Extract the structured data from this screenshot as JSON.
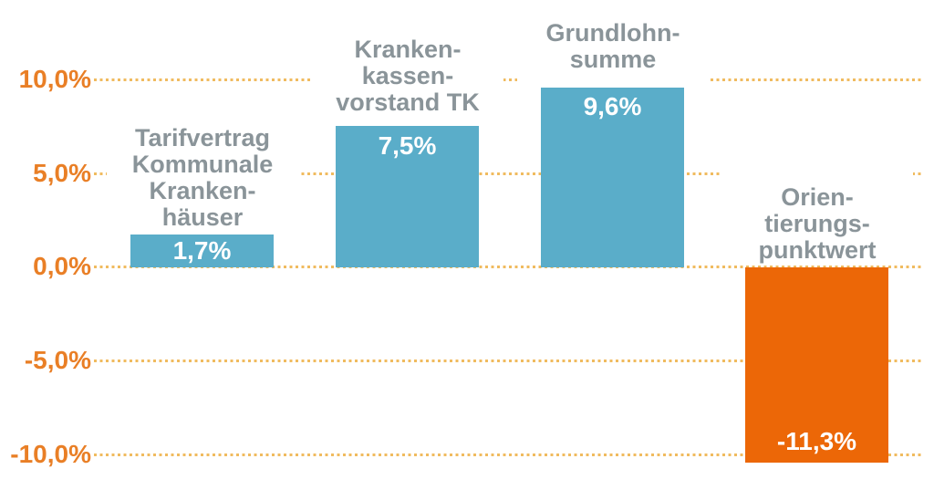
{
  "chart_data": {
    "type": "bar",
    "title": "",
    "xlabel": "",
    "ylabel": "",
    "categories": [
      "Tarifvertrag Kommunale Krankenhäuser",
      "Krankenkassenvorstand TK",
      "Grundlohnsumme",
      "Orientierungspunktwert"
    ],
    "values": [
      1.7,
      7.5,
      9.6,
      -11.3
    ],
    "yticks": [
      10,
      5,
      0,
      -5,
      -10
    ],
    "ytick_labels": [
      "10,0%",
      "5,0%",
      "0,0%",
      "-5,0%",
      "-10,0%"
    ],
    "ylim": [
      -11.5,
      11.5
    ],
    "grid": "horizontal-dotted",
    "legend": "none",
    "colors": {
      "positive_bar": "#5AADC9",
      "negative_bar": "#EC6707",
      "axis_tick_label": "#E97F26",
      "category_label": "#8A9499",
      "gridline_dots": "#F0BB5F",
      "value_label": "#FFFFFF",
      "background": "#FFFFFF"
    }
  },
  "bars": [
    {
      "label_display": "Tarifvertrag\nKommunale\nKranken-\nhäuser",
      "value": 1.7,
      "value_label": "1,7%",
      "color": "#5AADC9"
    },
    {
      "label_display": "Kranken-\nkassen-\nvorstand TK",
      "value": 7.5,
      "value_label": "7,5%",
      "color": "#5AADC9"
    },
    {
      "label_display": "Grundlohn-\nsumme",
      "value": 9.6,
      "value_label": "9,6%",
      "color": "#5AADC9"
    },
    {
      "label_display": "Orien-\ntierungs-\npunktwert",
      "value": -11.3,
      "value_label": "-11,3%",
      "color": "#EC6707"
    }
  ]
}
